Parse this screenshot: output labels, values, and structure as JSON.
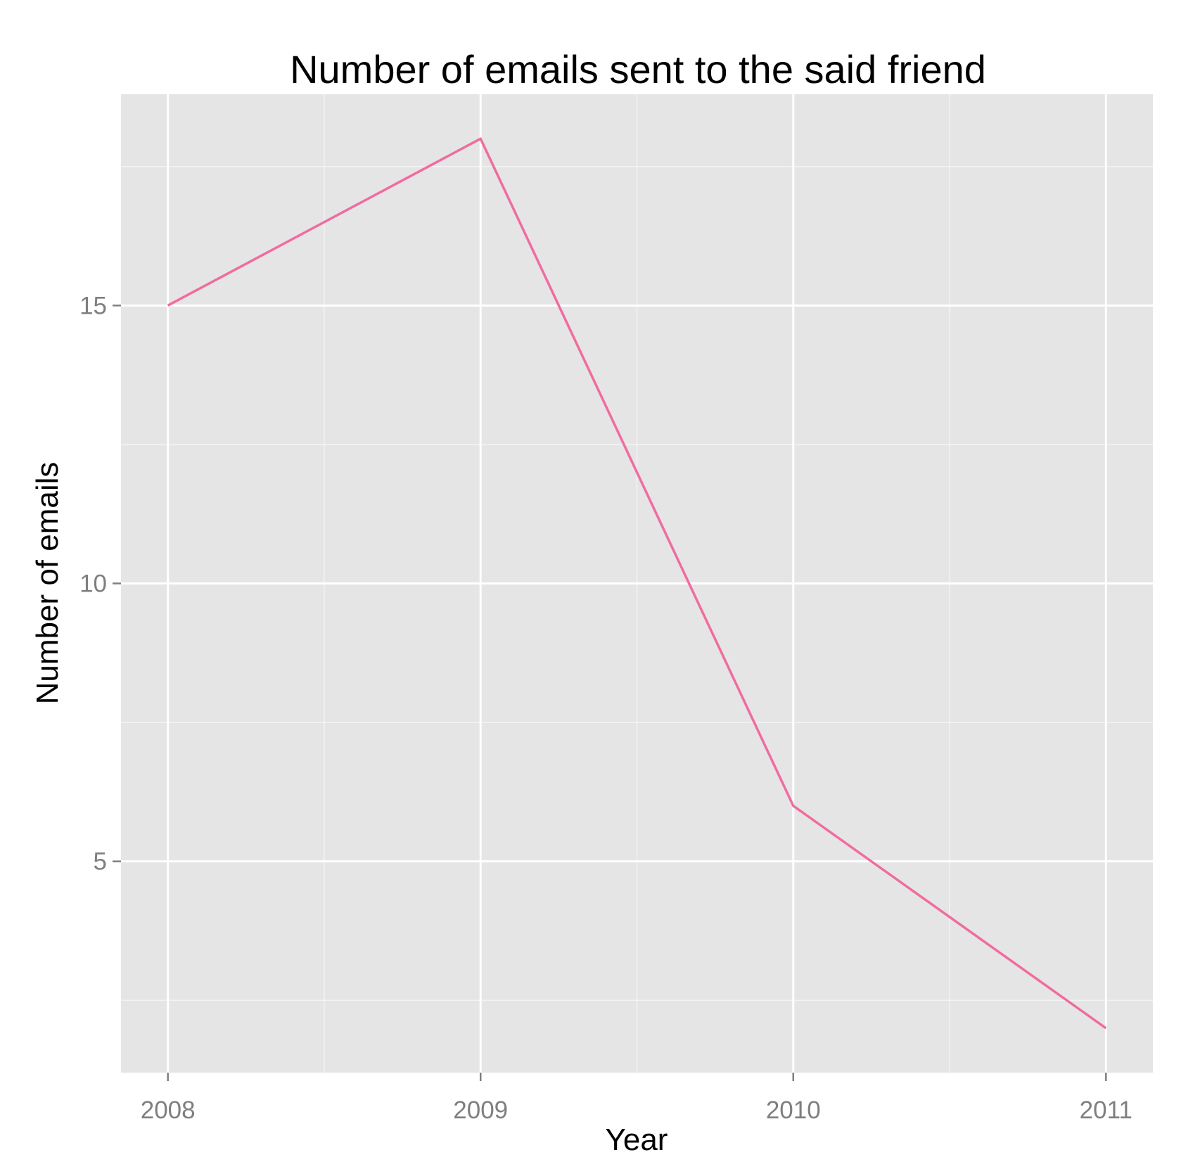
{
  "chart_data": {
    "type": "line",
    "title": "Number of emails sent to the said friend",
    "xlabel": "Year",
    "ylabel": "Number of emails",
    "x": [
      2008,
      2009,
      2010,
      2011
    ],
    "series": [
      {
        "values": [
          15,
          18,
          6,
          2
        ],
        "color": "#f06ca0"
      }
    ],
    "xticks": [
      "2008",
      "2009",
      "2010",
      "2011"
    ],
    "yticks": [
      "5",
      "10",
      "15"
    ],
    "xlim": [
      2007.85,
      2011.15
    ],
    "ylim": [
      1.2,
      18.8
    ],
    "grid": true,
    "panel_color": "#e5e5e5",
    "grid_color": "#ffffff"
  }
}
